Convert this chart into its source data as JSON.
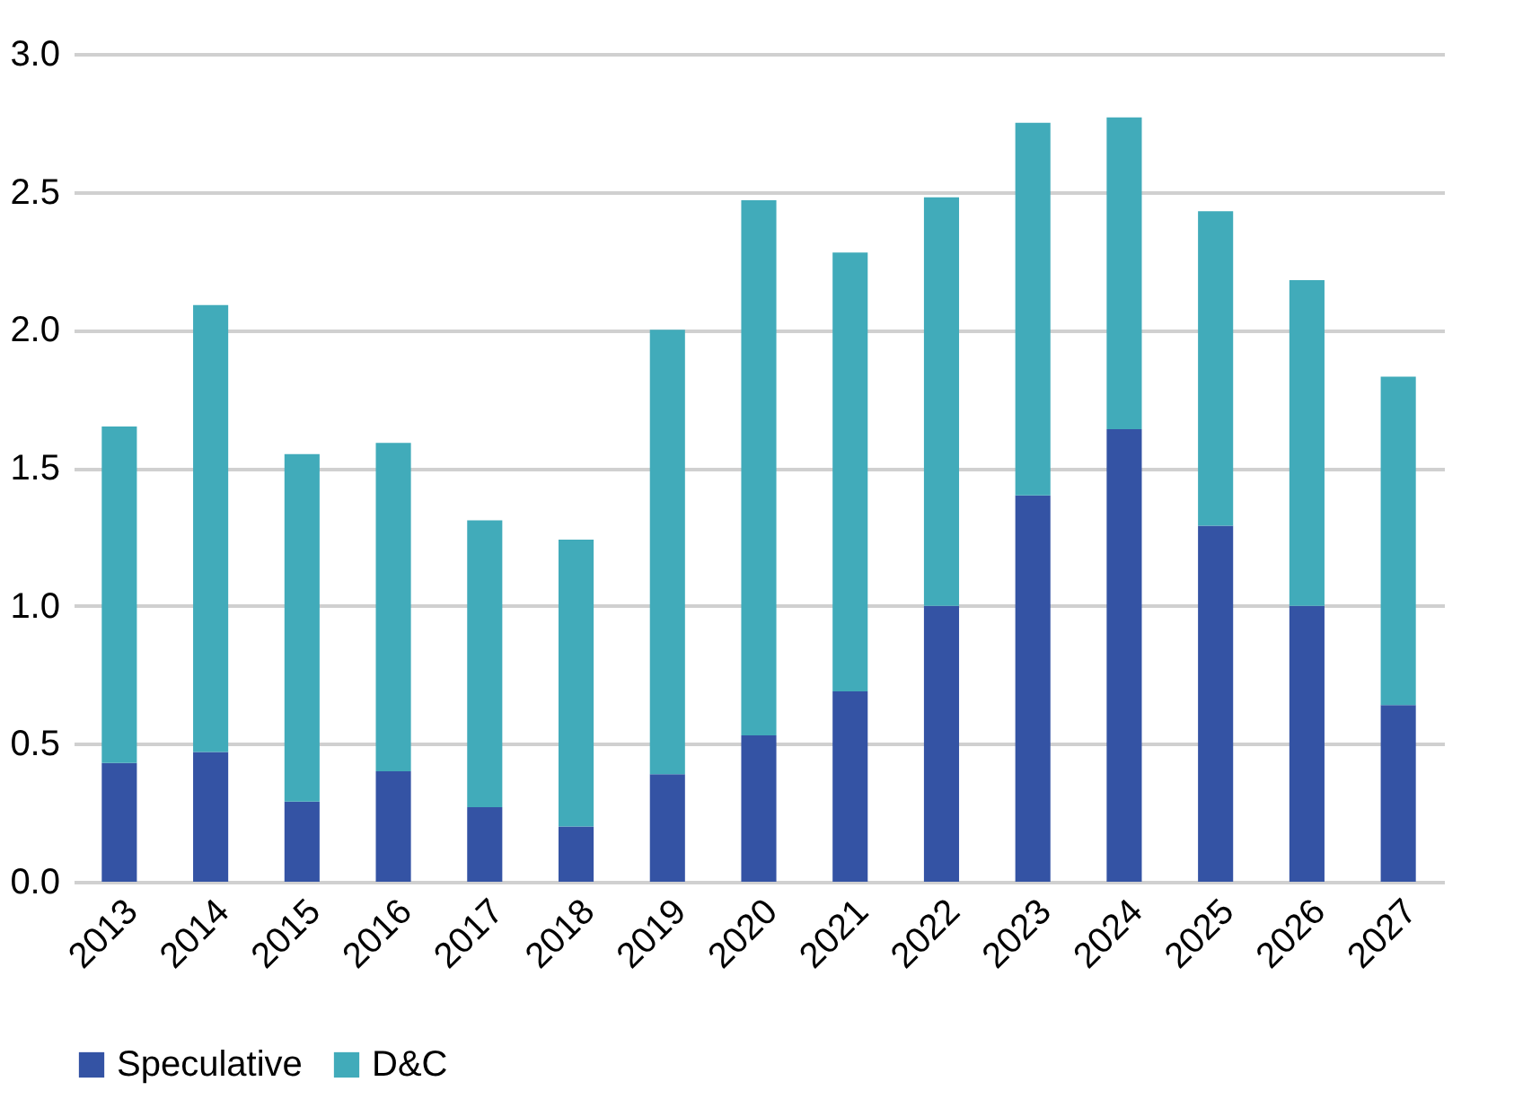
{
  "chart_data": {
    "type": "bar",
    "stacked": true,
    "categories": [
      "2013",
      "2014",
      "2015",
      "2016",
      "2017",
      "2018",
      "2019",
      "2020",
      "2021",
      "2022",
      "2023",
      "2024",
      "2025",
      "2026",
      "2027"
    ],
    "series": [
      {
        "name": "Speculative",
        "color": "#3453a4",
        "values": [
          0.43,
          0.47,
          0.29,
          0.4,
          0.27,
          0.2,
          0.39,
          0.53,
          0.69,
          1.0,
          1.4,
          1.64,
          1.29,
          1.0,
          0.64
        ]
      },
      {
        "name": "D&C",
        "color": "#41abba",
        "values": [
          1.22,
          1.62,
          1.26,
          1.19,
          1.04,
          1.04,
          1.61,
          1.94,
          1.59,
          1.48,
          1.35,
          1.13,
          1.14,
          1.18,
          1.19
        ]
      }
    ],
    "ylim": [
      0,
      3
    ],
    "yticks": [
      {
        "value": 0,
        "label": "0.0"
      },
      {
        "value": 0.5,
        "label": "0.5"
      },
      {
        "value": 1,
        "label": "1.0"
      },
      {
        "value": 1.5,
        "label": "1.5"
      },
      {
        "value": 2,
        "label": "2.0"
      },
      {
        "value": 2.5,
        "label": "2.5"
      },
      {
        "value": 3,
        "label": "3.0"
      }
    ],
    "grid": "y",
    "legend": "bottom"
  }
}
